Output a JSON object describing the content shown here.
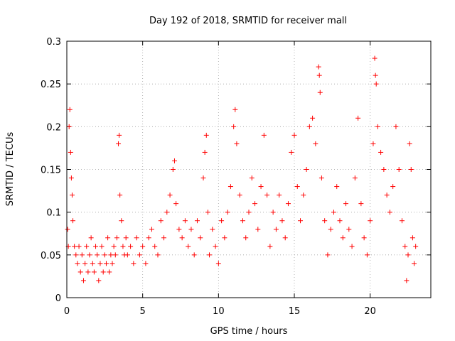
{
  "chart_data": {
    "type": "scatter",
    "title": "Day 192 of 2018, SRMTID for receiver mall",
    "xlabel": "GPS time / hours",
    "ylabel": "SRMTID / TECUs",
    "xlim": [
      0,
      24
    ],
    "ylim": [
      0,
      0.3
    ],
    "x_ticks": [
      0,
      5,
      10,
      15,
      20
    ],
    "x_tick_labels": [
      "0",
      "5",
      "10",
      "15",
      "20"
    ],
    "y_ticks": [
      0,
      0.05,
      0.1,
      0.15,
      0.2,
      0.25,
      0.3
    ],
    "y_tick_labels": [
      "0",
      "0.05",
      "0.1",
      "0.15",
      "0.2",
      "0.25",
      "0.3"
    ],
    "grid": true,
    "marker": "plus",
    "color": "#ff0000",
    "series": [
      {
        "name": "SRMTID",
        "points": [
          [
            0.05,
            0.08
          ],
          [
            0.1,
            0.06
          ],
          [
            0.15,
            0.2
          ],
          [
            0.2,
            0.22
          ],
          [
            0.25,
            0.17
          ],
          [
            0.3,
            0.14
          ],
          [
            0.35,
            0.12
          ],
          [
            0.4,
            0.09
          ],
          [
            0.5,
            0.06
          ],
          [
            0.6,
            0.05
          ],
          [
            0.7,
            0.04
          ],
          [
            0.8,
            0.06
          ],
          [
            0.9,
            0.03
          ],
          [
            1.0,
            0.05
          ],
          [
            1.1,
            0.02
          ],
          [
            1.2,
            0.04
          ],
          [
            1.3,
            0.06
          ],
          [
            1.4,
            0.03
          ],
          [
            1.5,
            0.05
          ],
          [
            1.6,
            0.07
          ],
          [
            1.7,
            0.04
          ],
          [
            1.8,
            0.03
          ],
          [
            1.9,
            0.06
          ],
          [
            2.0,
            0.05
          ],
          [
            2.1,
            0.02
          ],
          [
            2.2,
            0.04
          ],
          [
            2.3,
            0.06
          ],
          [
            2.4,
            0.03
          ],
          [
            2.5,
            0.05
          ],
          [
            2.6,
            0.04
          ],
          [
            2.7,
            0.07
          ],
          [
            2.8,
            0.03
          ],
          [
            2.9,
            0.05
          ],
          [
            3.0,
            0.04
          ],
          [
            3.1,
            0.06
          ],
          [
            3.2,
            0.05
          ],
          [
            3.3,
            0.07
          ],
          [
            3.4,
            0.18
          ],
          [
            3.45,
            0.19
          ],
          [
            3.5,
            0.12
          ],
          [
            3.6,
            0.09
          ],
          [
            3.7,
            0.06
          ],
          [
            3.8,
            0.05
          ],
          [
            3.9,
            0.07
          ],
          [
            4.0,
            0.05
          ],
          [
            4.2,
            0.06
          ],
          [
            4.4,
            0.04
          ],
          [
            4.6,
            0.07
          ],
          [
            4.8,
            0.05
          ],
          [
            5.0,
            0.06
          ],
          [
            5.2,
            0.04
          ],
          [
            5.4,
            0.07
          ],
          [
            5.6,
            0.08
          ],
          [
            5.8,
            0.06
          ],
          [
            6.0,
            0.05
          ],
          [
            6.2,
            0.09
          ],
          [
            6.4,
            0.07
          ],
          [
            6.6,
            0.1
          ],
          [
            6.8,
            0.12
          ],
          [
            7.0,
            0.15
          ],
          [
            7.1,
            0.16
          ],
          [
            7.2,
            0.11
          ],
          [
            7.4,
            0.08
          ],
          [
            7.6,
            0.07
          ],
          [
            7.8,
            0.09
          ],
          [
            8.0,
            0.06
          ],
          [
            8.2,
            0.08
          ],
          [
            8.4,
            0.05
          ],
          [
            8.6,
            0.09
          ],
          [
            8.8,
            0.07
          ],
          [
            9.0,
            0.14
          ],
          [
            9.1,
            0.17
          ],
          [
            9.2,
            0.19
          ],
          [
            9.3,
            0.1
          ],
          [
            9.4,
            0.05
          ],
          [
            9.6,
            0.08
          ],
          [
            9.8,
            0.06
          ],
          [
            10.0,
            0.04
          ],
          [
            10.2,
            0.09
          ],
          [
            10.4,
            0.07
          ],
          [
            10.6,
            0.1
          ],
          [
            10.8,
            0.13
          ],
          [
            11.0,
            0.2
          ],
          [
            11.1,
            0.22
          ],
          [
            11.2,
            0.18
          ],
          [
            11.4,
            0.12
          ],
          [
            11.6,
            0.09
          ],
          [
            11.8,
            0.07
          ],
          [
            12.0,
            0.1
          ],
          [
            12.2,
            0.14
          ],
          [
            12.4,
            0.11
          ],
          [
            12.6,
            0.08
          ],
          [
            12.8,
            0.13
          ],
          [
            13.0,
            0.19
          ],
          [
            13.2,
            0.12
          ],
          [
            13.4,
            0.06
          ],
          [
            13.6,
            0.1
          ],
          [
            13.8,
            0.08
          ],
          [
            14.0,
            0.12
          ],
          [
            14.2,
            0.09
          ],
          [
            14.4,
            0.07
          ],
          [
            14.6,
            0.11
          ],
          [
            14.8,
            0.17
          ],
          [
            15.0,
            0.19
          ],
          [
            15.2,
            0.13
          ],
          [
            15.4,
            0.09
          ],
          [
            15.6,
            0.12
          ],
          [
            15.8,
            0.15
          ],
          [
            16.0,
            0.2
          ],
          [
            16.2,
            0.21
          ],
          [
            16.4,
            0.18
          ],
          [
            16.6,
            0.27
          ],
          [
            16.65,
            0.26
          ],
          [
            16.7,
            0.24
          ],
          [
            16.8,
            0.14
          ],
          [
            17.0,
            0.09
          ],
          [
            17.2,
            0.05
          ],
          [
            17.4,
            0.08
          ],
          [
            17.6,
            0.1
          ],
          [
            17.8,
            0.13
          ],
          [
            18.0,
            0.09
          ],
          [
            18.2,
            0.07
          ],
          [
            18.4,
            0.11
          ],
          [
            18.6,
            0.08
          ],
          [
            18.8,
            0.06
          ],
          [
            19.0,
            0.14
          ],
          [
            19.2,
            0.21
          ],
          [
            19.4,
            0.11
          ],
          [
            19.6,
            0.07
          ],
          [
            19.8,
            0.05
          ],
          [
            20.0,
            0.09
          ],
          [
            20.2,
            0.18
          ],
          [
            20.3,
            0.28
          ],
          [
            20.35,
            0.26
          ],
          [
            20.4,
            0.25
          ],
          [
            20.5,
            0.2
          ],
          [
            20.7,
            0.17
          ],
          [
            20.9,
            0.15
          ],
          [
            21.1,
            0.12
          ],
          [
            21.3,
            0.1
          ],
          [
            21.5,
            0.13
          ],
          [
            21.7,
            0.2
          ],
          [
            21.9,
            0.15
          ],
          [
            22.1,
            0.09
          ],
          [
            22.3,
            0.06
          ],
          [
            22.4,
            0.02
          ],
          [
            22.5,
            0.05
          ],
          [
            22.6,
            0.18
          ],
          [
            22.7,
            0.15
          ],
          [
            22.8,
            0.07
          ],
          [
            22.9,
            0.04
          ],
          [
            23.0,
            0.06
          ]
        ]
      }
    ]
  }
}
